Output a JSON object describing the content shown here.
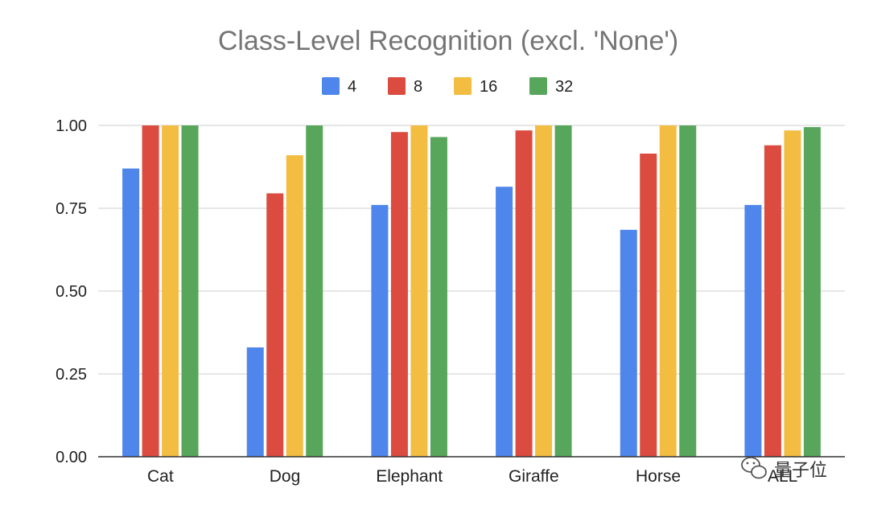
{
  "chart_data": {
    "type": "bar",
    "title": "Class-Level Recognition (excl. 'None')",
    "xlabel": "",
    "ylabel": "",
    "ylim": [
      0,
      1
    ],
    "yticks": [
      0,
      0.25,
      0.5,
      0.75,
      1.0
    ],
    "ytick_labels": [
      "0.00",
      "0.25",
      "0.50",
      "0.75",
      "1.00"
    ],
    "grid": true,
    "legend_position": "top-center",
    "categories": [
      "Cat",
      "Dog",
      "Elephant",
      "Giraffe",
      "Horse",
      "ALL"
    ],
    "series": [
      {
        "name": "4",
        "color": "#4f86ec",
        "values": [
          0.87,
          0.33,
          0.76,
          0.815,
          0.685,
          0.76
        ]
      },
      {
        "name": "8",
        "color": "#db4b3f",
        "values": [
          1.0,
          0.795,
          0.98,
          0.985,
          0.915,
          0.94
        ]
      },
      {
        "name": "16",
        "color": "#f3bd42",
        "values": [
          1.0,
          0.91,
          1.0,
          1.0,
          1.0,
          0.985
        ]
      },
      {
        "name": "32",
        "color": "#58a65c",
        "values": [
          1.0,
          1.0,
          0.965,
          1.0,
          1.0,
          0.995
        ]
      }
    ]
  },
  "watermark": {
    "text": "量子位",
    "icon": "wechat-icon"
  }
}
